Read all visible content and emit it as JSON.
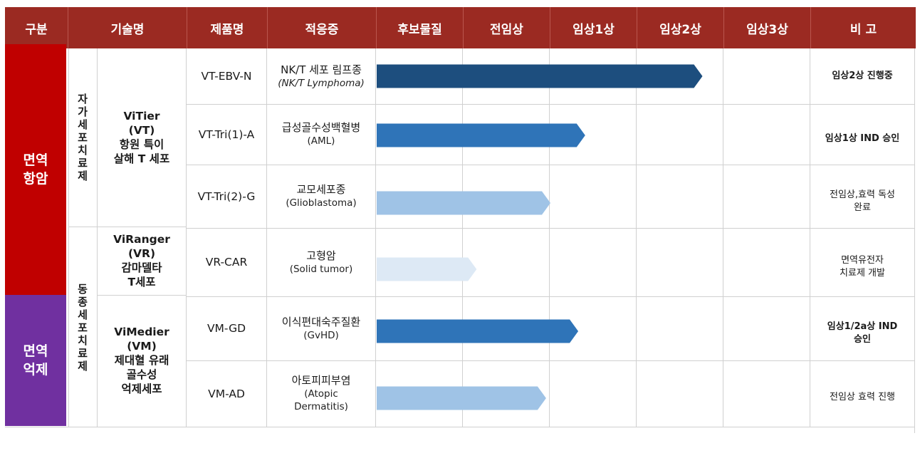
{
  "headers": {
    "category": "구분",
    "technology": "기술명",
    "product": "제품명",
    "indication": "적응증",
    "stages": [
      "후보물질",
      "전임상",
      "임상1상",
      "임상2상",
      "임상3상"
    ],
    "remarks": "비 고"
  },
  "categories": {
    "immuno_oncology": "면역\n항암",
    "immuno_suppression": "면역\n억제"
  },
  "therapy_types": {
    "autologous": [
      "자",
      "가",
      "세",
      "포",
      "치",
      "료",
      "제"
    ],
    "allogeneic": [
      "동",
      "종",
      "세",
      "포",
      "치",
      "료",
      "제"
    ]
  },
  "technologies": {
    "vitier": "ViTier\n(VT)\n항원 특이\n살해 T 세포",
    "viranger": "ViRanger\n(VR)\n감마델타\nT세포",
    "vimedier": "ViMedier\n(VM)\n제대혈 유래\n골수성\n억제세포"
  },
  "pipeline": [
    {
      "product": "VT-EBV-N",
      "indication_ko": "NK/T 세포 림프종",
      "indication_en": "(NK/T Lymphoma)",
      "remark": "임상2상 진행중",
      "remark_bold": true,
      "progress_stage": 3.75,
      "bar_color": "#1d4e7e"
    },
    {
      "product": "VT-Tri(1)-A",
      "indication_ko": "급성골수성백혈병",
      "indication_en": "(AML)",
      "remark": "임상1상 IND 승인",
      "remark_bold": true,
      "progress_stage": 2.4,
      "bar_color": "#2f74b8"
    },
    {
      "product": "VT-Tri(2)-G",
      "indication_ko": "교모세포종",
      "indication_en": "(Glioblastoma)",
      "remark": "전임상,효력 독성\n완료",
      "remark_bold": false,
      "progress_stage": 2.0,
      "bar_color": "#9fc3e6"
    },
    {
      "product": "VR-CAR",
      "indication_ko": "고형암",
      "indication_en": "(Solid tumor)",
      "remark": "면역유전자\n치료제 개발",
      "remark_bold": false,
      "progress_stage": 1.15,
      "bar_color": "#dde9f5"
    },
    {
      "product": "VM-GD",
      "indication_ko": "이식편대숙주질환",
      "indication_en": "(GvHD)",
      "remark": "임상1/2a상 IND\n승인",
      "remark_bold": true,
      "progress_stage": 2.32,
      "bar_color": "#2f74b8"
    },
    {
      "product": "VM-AD",
      "indication_ko": "아토피피부염",
      "indication_en": "(Atopic\nDermatitis)",
      "remark": "전임상 효력 진행",
      "remark_bold": false,
      "progress_stage": 1.95,
      "bar_color": "#9fc3e6"
    }
  ],
  "colors": {
    "header": "#9b2a22",
    "immuno_oncology": "#c00000",
    "immuno_suppression": "#7030a0"
  }
}
